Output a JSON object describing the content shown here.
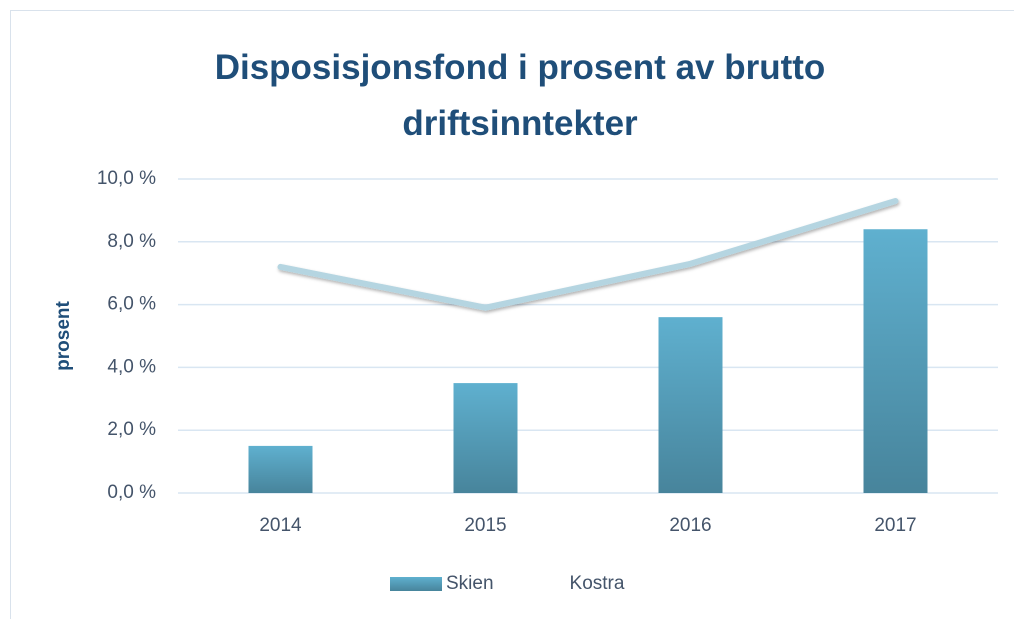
{
  "chart_data": {
    "type": "bar-line",
    "title": "Disposisjonsfond i prosent av brutto driftsinntekter",
    "y_label": "prosent",
    "categories": [
      "2014",
      "2015",
      "2016",
      "2017"
    ],
    "series": [
      {
        "name": "Skien",
        "type": "bar",
        "color": "#5fb0cf",
        "values": [
          1.5,
          3.5,
          5.6,
          8.4
        ]
      },
      {
        "name": "Kostra",
        "type": "line",
        "color": "#b5d5e1",
        "values": [
          7.2,
          5.9,
          7.3,
          9.3
        ]
      }
    ],
    "ylim": [
      0,
      10
    ],
    "yticks": [
      {
        "value": 0,
        "label": "0,0 %"
      },
      {
        "value": 2,
        "label": "2,0 %"
      },
      {
        "value": 4,
        "label": "4,0 %"
      },
      {
        "value": 6,
        "label": "6,0 %"
      },
      {
        "value": 8,
        "label": "8,0 %"
      },
      {
        "value": 10,
        "label": "10,0 %"
      }
    ],
    "grid": true,
    "legend": "bottom"
  }
}
